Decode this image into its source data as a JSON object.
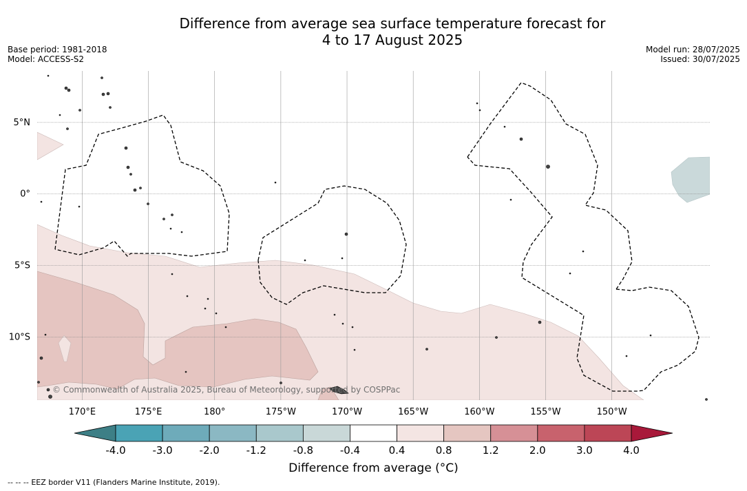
{
  "header": {
    "title_line1": "Difference from average sea surface temperature forecast for",
    "title_line2": "4 to 17 August 2025",
    "base_period": "Base period: 1981-2018",
    "model": "Model: ACCESS-S2",
    "model_run": "Model run: 28/07/2025",
    "issued": "Issued: 30/07/2025"
  },
  "map": {
    "region": "Western Pacific / Pacific islands",
    "lon_range": [
      166.6,
      -142.6
    ],
    "lat_range": [
      -14.4,
      8.6
    ],
    "lon_ticks": [
      {
        "value": 170,
        "label": "170°E"
      },
      {
        "value": 175,
        "label": "175°E"
      },
      {
        "value": 180,
        "label": "180°"
      },
      {
        "value": 185,
        "label": "175°W"
      },
      {
        "value": 190,
        "label": "170°W"
      },
      {
        "value": 195,
        "label": "165°W"
      },
      {
        "value": 200,
        "label": "160°W"
      },
      {
        "value": 205,
        "label": "155°W"
      },
      {
        "value": 210,
        "label": "150°W"
      }
    ],
    "lat_ticks": [
      {
        "value": 5,
        "label": "5°N"
      },
      {
        "value": 0,
        "label": "0°"
      },
      {
        "value": -5,
        "label": "5°S"
      },
      {
        "value": -10,
        "label": "10°S"
      }
    ],
    "gridlines": true,
    "copyright": "© Commonwealth of Australia 2025, Bureau of Meteorology, supported by COSPPac",
    "colors": {
      "band_0_4_0_8": "#f3e4e2",
      "band_0_8_1_2": "#e5c5c1",
      "band_neg0_8_neg0_4": "#cad9da",
      "eez": "#000000"
    }
  },
  "colorbar": {
    "title": "Difference from average (°C)",
    "tick_labels": [
      "-4.0",
      "-3.0",
      "-2.0",
      "-1.2",
      "-0.8",
      "-0.4",
      "0.4",
      "0.8",
      "1.2",
      "2.0",
      "3.0",
      "4.0"
    ],
    "under_color": "#3d7f86",
    "over_color": "#a8193a",
    "band_colors": [
      "#4aa3b5",
      "#6eabba",
      "#8bb8c3",
      "#a9c8cc",
      "#c9d8d8",
      "#ffffff",
      "#f4e5e3",
      "#e5c6c1",
      "#d69096",
      "#c8626d",
      "#bc4656"
    ]
  },
  "legend": {
    "eez_symbol": "--  --  --",
    "eez_label": "EEZ border V11 (Flanders Marine Institute, 2019)."
  }
}
